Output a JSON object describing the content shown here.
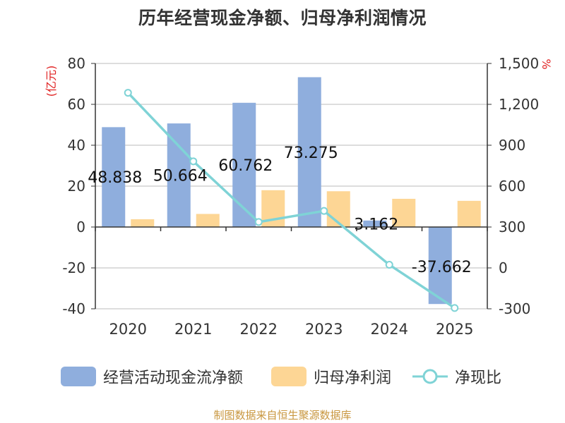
{
  "title": "历年经营现金净额、归母净利润情况",
  "source_note": "制图数据来自恒生聚源数据库",
  "colors": {
    "cash_bar": "#8faedd",
    "profit_bar": "#fdd695",
    "ratio_line": "#7fd3d6",
    "axis_unit": "#e02020",
    "grid": "#bbbbbb",
    "text": "#333333"
  },
  "chart_data": {
    "type": "bar",
    "title": "历年经营现金净额、归母净利润情况",
    "categories": [
      "2020",
      "2021",
      "2022",
      "2023",
      "2024",
      "2025"
    ],
    "y_left": {
      "unit": "(亿元)",
      "min": -40,
      "max": 80,
      "ticks": [
        -40,
        -20,
        0,
        20,
        40,
        60,
        80
      ],
      "tick_labels": [
        "-40",
        "-20",
        "0",
        "20",
        "40",
        "60",
        "80"
      ]
    },
    "y_right": {
      "unit": "%",
      "min": -300,
      "max": 1500,
      "ticks": [
        -300,
        0,
        300,
        600,
        900,
        1200,
        1500
      ],
      "tick_labels": [
        "-300",
        "0",
        "300",
        "600",
        "900",
        "1,200",
        "1,500"
      ]
    },
    "series": [
      {
        "name": "经营活动现金流净额",
        "type": "bar",
        "axis": "left",
        "values": [
          48.838,
          50.664,
          60.762,
          73.275,
          3.162,
          -37.662
        ],
        "labels": [
          "48.838",
          "50.664",
          "60.762",
          "73.275",
          "3.162",
          "-37.662"
        ]
      },
      {
        "name": "归母净利润",
        "type": "bar",
        "axis": "left",
        "values": [
          3.8,
          6.4,
          18.0,
          17.5,
          13.8,
          12.8
        ]
      },
      {
        "name": "净现比",
        "type": "line",
        "axis": "right",
        "values": [
          1285,
          782,
          337,
          418,
          23,
          -294
        ]
      }
    ]
  }
}
